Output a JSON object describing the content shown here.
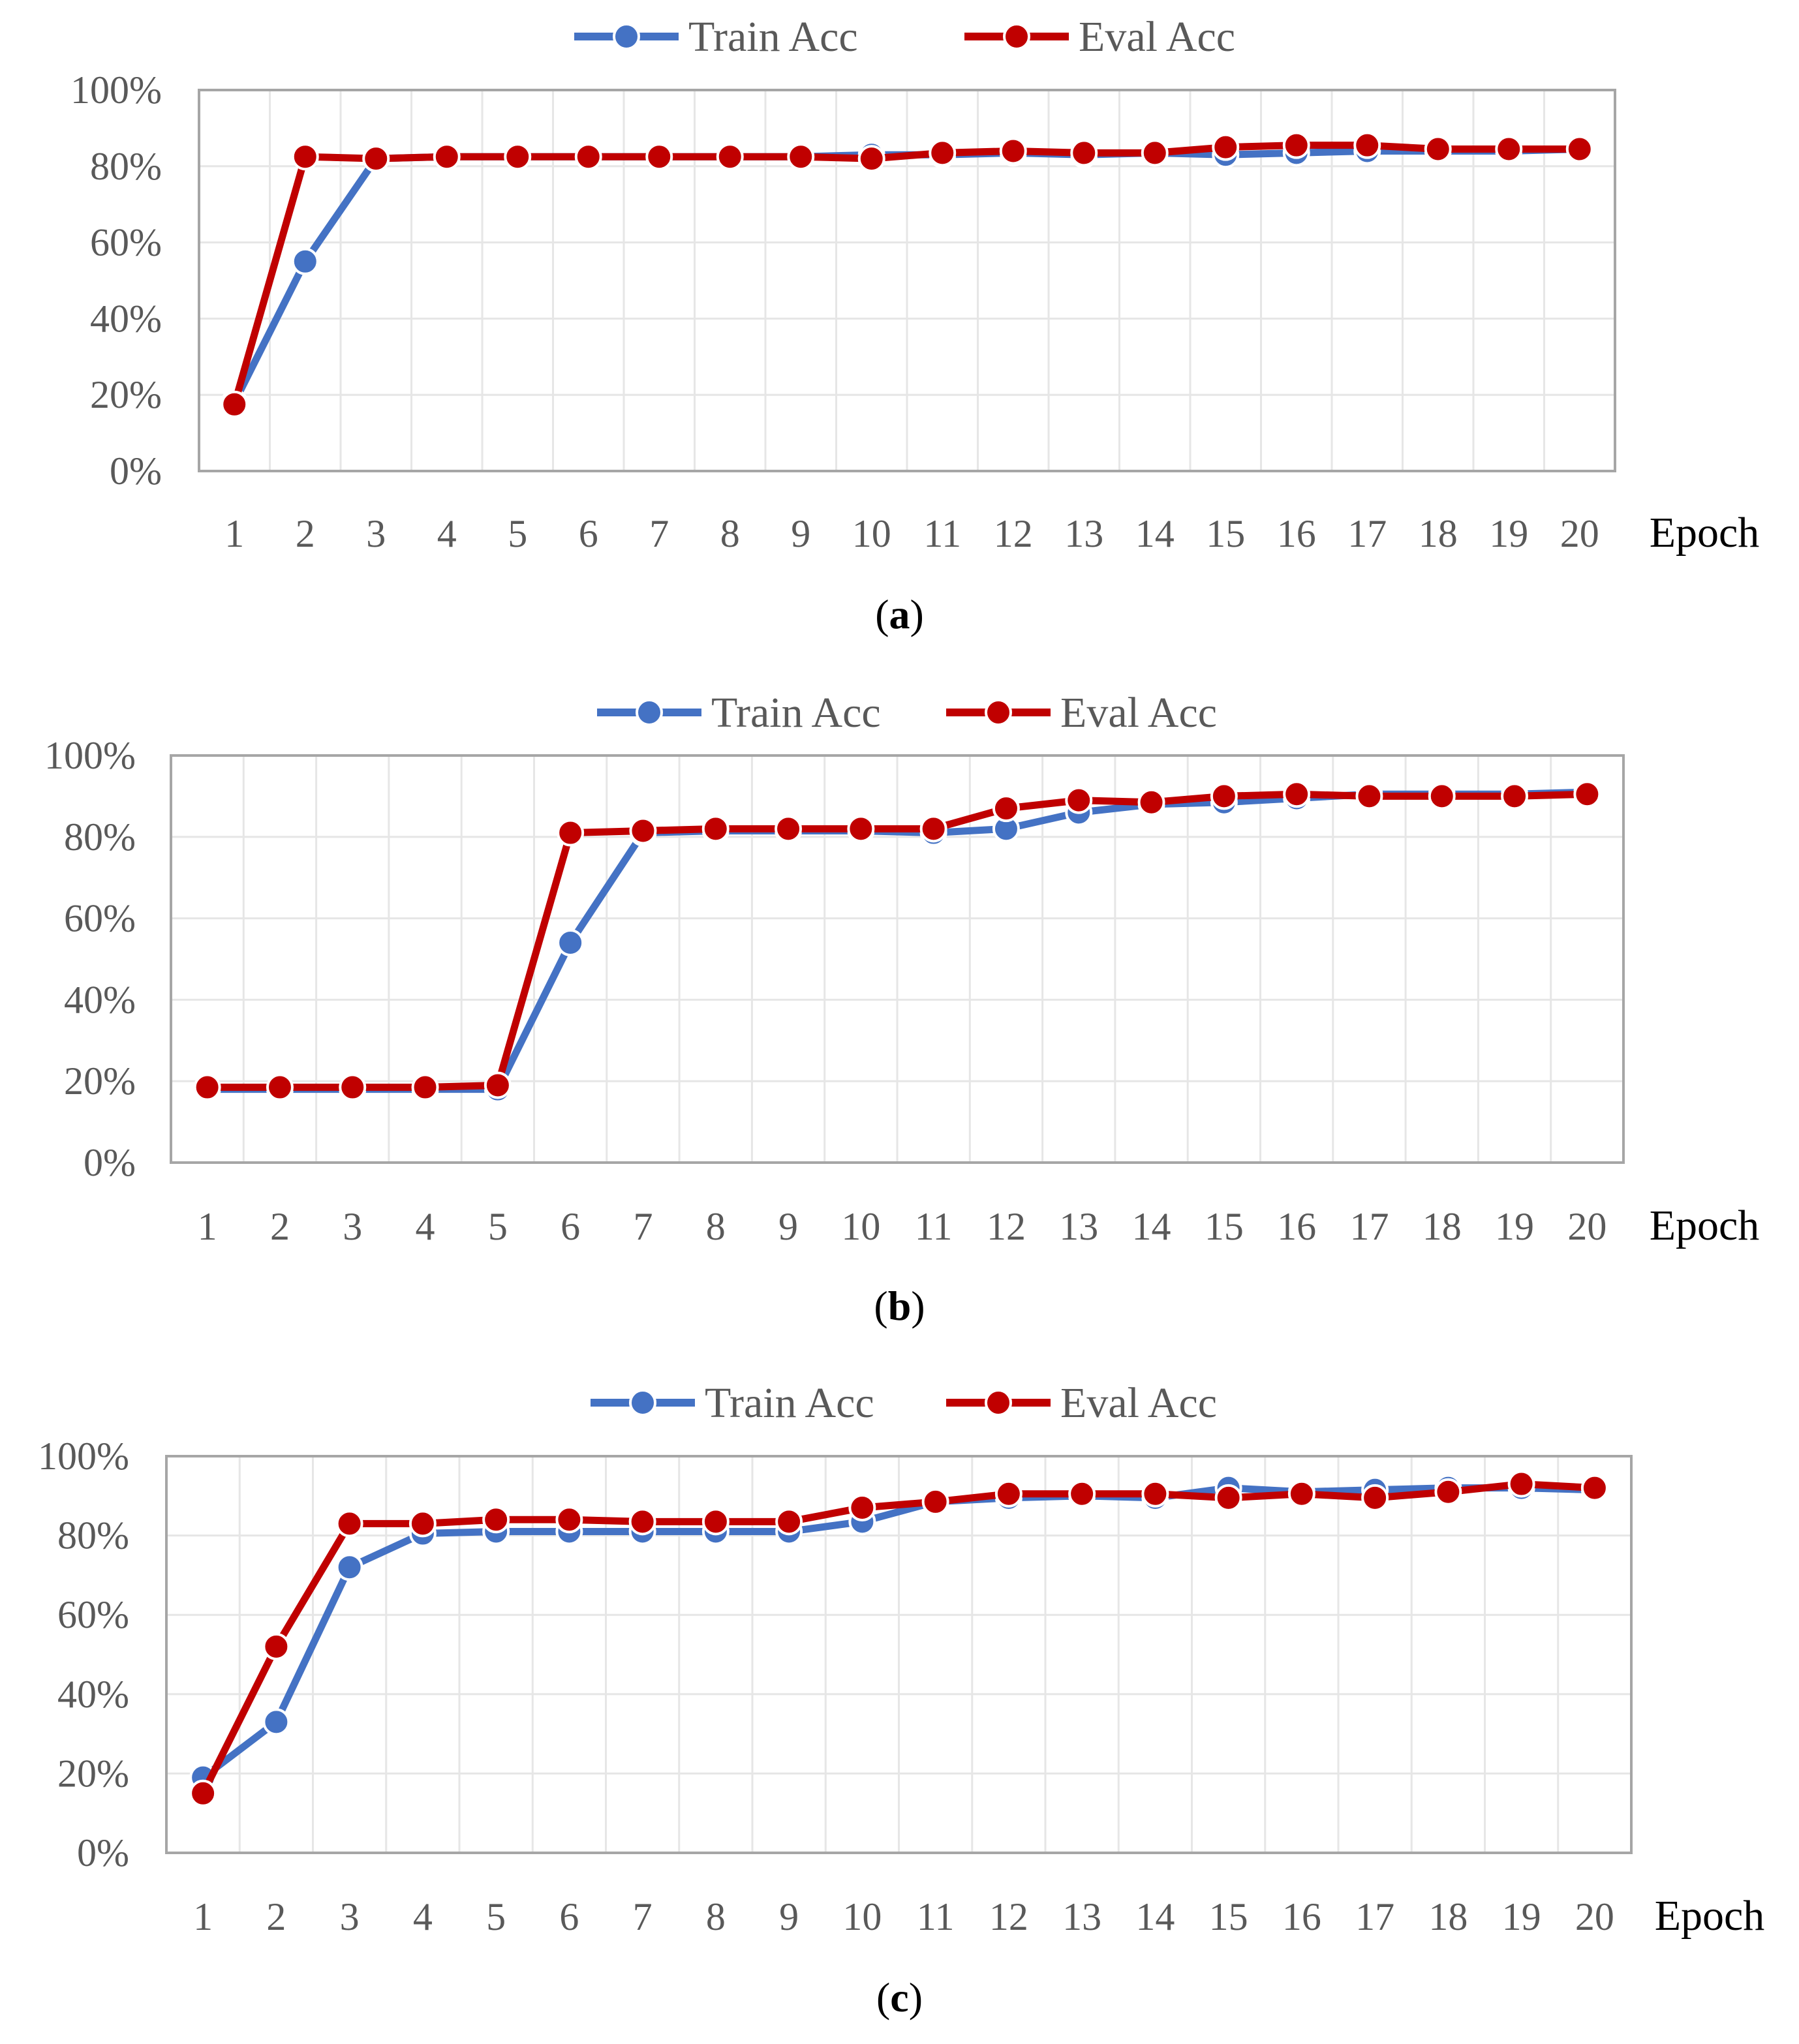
{
  "colors": {
    "train": "#4472C4",
    "eval": "#C00000",
    "grid": "#E6E6E6",
    "frame": "#A6A6A6",
    "text": "#595959"
  },
  "chart_data": [
    {
      "panel": "a",
      "caption_label": "a",
      "type": "line",
      "xlabel": "Epoch",
      "ylabel": "",
      "ylim": [
        0,
        100
      ],
      "ytick_labels": [
        "0%",
        "20%",
        "40%",
        "60%",
        "80%",
        "100%"
      ],
      "categories": [
        "1",
        "2",
        "3",
        "4",
        "5",
        "6",
        "7",
        "8",
        "9",
        "10",
        "11",
        "12",
        "13",
        "14",
        "15",
        "16",
        "17",
        "18",
        "19",
        "20"
      ],
      "legend": [
        "Train Acc",
        "Eval Acc"
      ],
      "series": [
        {
          "name": "Train Acc",
          "values": [
            18,
            55,
            82,
            82.5,
            82.5,
            82.5,
            82.5,
            82.5,
            82.5,
            83,
            83,
            83.5,
            83,
            83.5,
            83,
            83.5,
            84,
            84,
            84,
            84.5
          ]
        },
        {
          "name": "Eval Acc",
          "values": [
            17.5,
            82.5,
            82,
            82.5,
            82.5,
            82.5,
            82.5,
            82.5,
            82.5,
            82,
            83.5,
            84,
            83.5,
            83.5,
            85,
            85.5,
            85.5,
            84.5,
            84.5,
            84.5
          ]
        }
      ]
    },
    {
      "panel": "b",
      "caption_label": "b",
      "type": "line",
      "xlabel": "Epoch",
      "ylabel": "",
      "ylim": [
        0,
        100
      ],
      "ytick_labels": [
        "0%",
        "20%",
        "40%",
        "60%",
        "80%",
        "100%"
      ],
      "categories": [
        "1",
        "2",
        "3",
        "4",
        "5",
        "6",
        "7",
        "8",
        "9",
        "10",
        "11",
        "12",
        "13",
        "14",
        "15",
        "16",
        "17",
        "18",
        "19",
        "20"
      ],
      "legend": [
        "Train Acc",
        "Eval Acc"
      ],
      "series": [
        {
          "name": "Train Acc",
          "values": [
            18,
            18,
            18,
            18,
            18,
            54,
            81,
            81.5,
            81.5,
            81.5,
            81,
            82,
            86,
            88,
            88.5,
            89.5,
            90.5,
            90.5,
            90.5,
            91
          ]
        },
        {
          "name": "Eval Acc",
          "values": [
            18.5,
            18.5,
            18.5,
            18.5,
            19,
            81,
            81.5,
            82,
            82,
            82,
            82,
            87,
            89,
            88.5,
            90,
            90.5,
            90,
            90,
            90,
            90.5
          ]
        }
      ]
    },
    {
      "panel": "c",
      "caption_label": "c",
      "type": "line",
      "xlabel": "Epoch",
      "ylabel": "",
      "ylim": [
        0,
        100
      ],
      "ytick_labels": [
        "0%",
        "20%",
        "40%",
        "60%",
        "80%",
        "100%"
      ],
      "categories": [
        "1",
        "2",
        "3",
        "4",
        "5",
        "6",
        "7",
        "8",
        "9",
        "10",
        "11",
        "12",
        "13",
        "14",
        "15",
        "16",
        "17",
        "18",
        "19",
        "20"
      ],
      "legend": [
        "Train Acc",
        "Eval Acc"
      ],
      "series": [
        {
          "name": "Train Acc",
          "values": [
            19,
            33,
            72,
            80.5,
            81,
            81,
            81,
            81,
            81,
            83.5,
            88.5,
            89.5,
            90,
            89.5,
            92,
            91,
            91.5,
            92,
            92,
            91.5
          ]
        },
        {
          "name": "Eval Acc",
          "values": [
            15,
            52,
            83,
            83,
            84,
            84,
            83.5,
            83.5,
            83.5,
            87,
            88.5,
            90.5,
            90.5,
            90.5,
            89.5,
            90.5,
            89.5,
            91,
            93,
            92
          ]
        }
      ]
    }
  ]
}
